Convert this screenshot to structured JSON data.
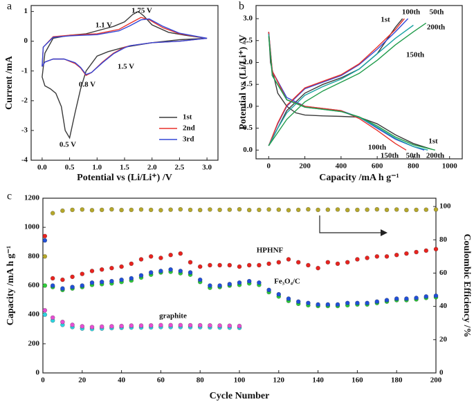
{
  "chart_data": [
    {
      "type": "line",
      "label": "a",
      "xlabel": "Potential vs (Li/Li⁺) /V",
      "ylabel": "Current /mA",
      "xlim": [
        -0.2,
        3.2
      ],
      "ylim": [
        -4,
        1.2
      ],
      "xticks": [
        {
          "value": 0,
          "label": "0.0"
        },
        {
          "value": 0.5,
          "label": "0.5"
        },
        {
          "value": 1,
          "label": "1.0"
        },
        {
          "value": 1.5,
          "label": "1.5"
        },
        {
          "value": 2,
          "label": "2.0"
        },
        {
          "value": 2.5,
          "label": "2.5"
        },
        {
          "value": 3,
          "label": "3.0"
        }
      ],
      "yticks": [
        -4,
        -3,
        -2,
        -1,
        0,
        1
      ],
      "legend": "lower right",
      "series": [
        {
          "name": "1st",
          "color": "#3a3a3a",
          "x": [
            3.0,
            2.5,
            2.0,
            1.5,
            1.2,
            1.0,
            0.8,
            0.7,
            0.6,
            0.5,
            0.42,
            0.35,
            0.25,
            0.15,
            0.05,
            0.0,
            0.05,
            0.2,
            0.5,
            0.8,
            1.1,
            1.3,
            1.5,
            1.65,
            1.75,
            1.85,
            2.0,
            2.3,
            2.6,
            3.0
          ],
          "values": [
            0.1,
            0.05,
            -0.05,
            -0.2,
            -0.35,
            -0.5,
            -1.0,
            -1.6,
            -2.4,
            -3.25,
            -3.0,
            -2.2,
            -1.75,
            -1.6,
            -1.5,
            -1.2,
            -0.4,
            0.1,
            0.2,
            0.25,
            0.4,
            0.5,
            0.65,
            0.9,
            1.0,
            0.85,
            0.55,
            0.3,
            0.2,
            0.1
          ]
        },
        {
          "name": "2nd",
          "color": "#e8312a",
          "x": [
            3.0,
            2.5,
            2.0,
            1.6,
            1.5,
            1.3,
            1.1,
            0.9,
            0.8,
            0.7,
            0.6,
            0.4,
            0.2,
            0.05,
            0.0,
            0.02,
            0.2,
            0.5,
            1.0,
            1.4,
            1.6,
            1.8,
            1.95,
            2.2,
            2.5,
            3.0
          ],
          "values": [
            0.1,
            0.0,
            -0.05,
            -0.15,
            -0.2,
            -0.4,
            -0.7,
            -1.05,
            -1.15,
            -0.9,
            -0.75,
            -0.6,
            -0.6,
            -0.7,
            -0.85,
            -0.2,
            0.15,
            0.2,
            0.25,
            0.4,
            0.6,
            0.8,
            0.72,
            0.45,
            0.25,
            0.1
          ]
        },
        {
          "name": "3rd",
          "color": "#3347d6",
          "x": [
            3.0,
            2.5,
            2.0,
            1.6,
            1.5,
            1.3,
            1.1,
            0.9,
            0.8,
            0.7,
            0.6,
            0.4,
            0.2,
            0.05,
            0.0,
            0.02,
            0.2,
            0.5,
            1.0,
            1.4,
            1.6,
            1.8,
            1.95,
            2.2,
            2.5,
            3.0
          ],
          "values": [
            0.1,
            0.0,
            -0.05,
            -0.15,
            -0.22,
            -0.42,
            -0.72,
            -1.05,
            -1.12,
            -0.88,
            -0.72,
            -0.6,
            -0.6,
            -0.7,
            -0.85,
            -0.2,
            0.13,
            0.18,
            0.22,
            0.35,
            0.52,
            0.72,
            0.75,
            0.5,
            0.27,
            0.1
          ]
        }
      ],
      "annotations": [
        "1.1 V",
        "1.75 V",
        "1.5 V",
        "0.8 V",
        "0.5 V"
      ]
    },
    {
      "type": "line",
      "label": "b",
      "xlabel": "Capacity /mA h g⁻¹",
      "ylabel": "Potential vs (Li/Li⁺) /V",
      "xlim": [
        -70,
        1070
      ],
      "ylim": [
        -0.2,
        3.3
      ],
      "xticks": [
        0,
        200,
        400,
        600,
        800,
        1000
      ],
      "yticks": [
        {
          "value": 0,
          "label": "0.0"
        },
        {
          "value": 0.5,
          "label": "0.5"
        },
        {
          "value": 1,
          "label": "1.0"
        },
        {
          "value": 1.5,
          "label": "1.5"
        },
        {
          "value": 2,
          "label": "2.0"
        },
        {
          "value": 2.5,
          "label": "2.5"
        },
        {
          "value": 3,
          "label": "3.0"
        }
      ],
      "series": [
        {
          "name": "1st",
          "color": "#3a3a3a",
          "x": [
            0,
            10,
            50,
            100,
            150,
            200,
            300,
            400,
            500,
            600,
            700,
            800,
            900,
            null,
            0,
            50,
            100,
            200,
            300,
            400,
            500,
            600,
            650,
            700,
            740
          ],
          "values": [
            2.7,
            2.0,
            1.3,
            1.0,
            0.85,
            0.8,
            0.78,
            0.77,
            0.75,
            0.6,
            0.35,
            0.15,
            0.02,
            null,
            0.1,
            0.5,
            0.9,
            1.3,
            1.5,
            1.65,
            1.85,
            2.2,
            2.5,
            2.8,
            3.0
          ]
        },
        {
          "name": "50th",
          "color": "#3347d6",
          "x": [
            0,
            20,
            100,
            200,
            300,
            400,
            500,
            600,
            700,
            800,
            860,
            null,
            0,
            50,
            100,
            200,
            300,
            400,
            500,
            600,
            700,
            770
          ],
          "values": [
            2.7,
            1.8,
            1.2,
            1.0,
            0.95,
            0.9,
            0.75,
            0.5,
            0.25,
            0.08,
            0.0,
            null,
            0.1,
            0.6,
            1.0,
            1.4,
            1.55,
            1.7,
            1.95,
            2.3,
            2.7,
            3.0
          ]
        },
        {
          "name": "100th",
          "color": "#e8312a",
          "x": [
            0,
            20,
            100,
            200,
            300,
            400,
            500,
            600,
            700,
            760,
            null,
            0,
            50,
            100,
            200,
            300,
            400,
            500,
            600,
            700,
            750
          ],
          "values": [
            2.7,
            1.8,
            1.15,
            1.0,
            0.95,
            0.9,
            0.72,
            0.45,
            0.15,
            0.0,
            null,
            0.1,
            0.62,
            1.02,
            1.42,
            1.57,
            1.72,
            1.97,
            2.35,
            2.75,
            3.0
          ]
        },
        {
          "name": "150th",
          "color": "#1aa3a3",
          "x": [
            0,
            20,
            100,
            200,
            300,
            400,
            500,
            600,
            700,
            800,
            880,
            null,
            0,
            50,
            100,
            200,
            300,
            400,
            500,
            600,
            700,
            800
          ],
          "values": [
            2.65,
            1.7,
            1.15,
            0.98,
            0.93,
            0.88,
            0.75,
            0.52,
            0.27,
            0.08,
            0.0,
            null,
            0.1,
            0.5,
            0.85,
            1.25,
            1.45,
            1.62,
            1.85,
            2.2,
            2.55,
            2.85
          ]
        },
        {
          "name": "200th",
          "color": "#1f9b4a",
          "x": [
            0,
            20,
            100,
            200,
            300,
            400,
            500,
            600,
            700,
            800,
            920,
            null,
            0,
            50,
            100,
            200,
            300,
            400,
            500,
            600,
            700,
            800,
            870
          ],
          "values": [
            2.6,
            1.7,
            1.15,
            0.98,
            0.93,
            0.88,
            0.76,
            0.55,
            0.3,
            0.12,
            0.0,
            null,
            0.1,
            0.4,
            0.7,
            1.1,
            1.35,
            1.55,
            1.75,
            2.05,
            2.4,
            2.7,
            2.9
          ]
        }
      ],
      "annotations": [
        "1st",
        "100th",
        "150th",
        "50th",
        "200th"
      ]
    },
    {
      "type": "scatter",
      "label": "c",
      "xlabel": "Cycle Number",
      "ylabel": "Capacity /mA h g⁻¹",
      "y2label": "Coulombic Efficiency /%",
      "xlim": [
        0,
        200
      ],
      "ylim": [
        0,
        1200
      ],
      "y2lim": [
        0,
        105
      ],
      "xticks": [
        0,
        20,
        40,
        60,
        80,
        100,
        120,
        140,
        160,
        180,
        200
      ],
      "yticks": [
        0,
        200,
        400,
        600,
        800,
        1000,
        1200
      ],
      "y2ticks": [
        0,
        20,
        40,
        60,
        80,
        100
      ],
      "series": [
        {
          "color": "#b5a72a",
          "axis": "y2",
          "x": [
            1,
            5,
            10,
            15,
            20,
            25,
            30,
            35,
            40,
            45,
            50,
            55,
            60,
            65,
            70,
            75,
            80,
            85,
            90,
            95,
            100,
            105,
            110,
            115,
            120,
            125,
            130,
            135,
            140,
            145,
            150,
            155,
            160,
            165,
            170,
            175,
            180,
            185,
            190,
            195,
            200
          ],
          "values": [
            70,
            96,
            97.5,
            98,
            98.2,
            97.8,
            98,
            98.3,
            97.9,
            98,
            98.2,
            98,
            97.8,
            98.1,
            98.3,
            98,
            97.9,
            98.2,
            98,
            98.1,
            98.3,
            97.9,
            98,
            98.2,
            98.1,
            97.8,
            98,
            98.3,
            98,
            98.1,
            98.2,
            97.9,
            98,
            98.1,
            98.3,
            98,
            98.2,
            97.9,
            98,
            98.1,
            98.2
          ]
        },
        {
          "name": "HPHNF",
          "color": "#e8231f",
          "x": [
            1,
            5,
            10,
            15,
            20,
            25,
            30,
            35,
            40,
            45,
            50,
            55,
            60,
            65,
            70,
            75,
            80,
            85,
            90,
            95,
            100,
            105,
            110,
            115,
            120,
            125,
            130,
            135,
            140,
            145,
            150,
            155,
            160,
            165,
            170,
            175,
            180,
            185,
            190,
            195,
            200
          ],
          "values": [
            940,
            650,
            640,
            660,
            680,
            700,
            710,
            720,
            730,
            750,
            780,
            800,
            790,
            810,
            820,
            760,
            730,
            740,
            740,
            740,
            730,
            740,
            740,
            750,
            760,
            780,
            760,
            740,
            720,
            760,
            750,
            760,
            780,
            790,
            800,
            800,
            810,
            820,
            830,
            840,
            850
          ]
        },
        {
          "color": "#2ecc3a",
          "x": [
            1,
            5,
            10,
            15,
            20,
            25,
            30,
            35,
            40,
            45,
            50,
            55,
            60,
            65,
            70,
            75,
            80,
            85,
            90,
            95,
            100,
            105,
            110,
            115,
            120,
            125,
            130,
            135,
            140,
            145,
            150,
            155,
            160,
            165,
            170,
            175,
            180,
            185,
            190,
            195,
            200
          ],
          "values": [
            600,
            590,
            570,
            580,
            590,
            605,
            610,
            615,
            625,
            635,
            655,
            675,
            690,
            695,
            685,
            675,
            625,
            585,
            590,
            600,
            605,
            615,
            605,
            555,
            525,
            495,
            475,
            465,
            460,
            460,
            460,
            465,
            470,
            470,
            480,
            490,
            500,
            500,
            505,
            515,
            520
          ]
        },
        {
          "name": "Fe₃O₄/C",
          "color": "#2150d8",
          "x": [
            1,
            5,
            10,
            15,
            20,
            25,
            30,
            35,
            40,
            45,
            50,
            55,
            60,
            65,
            70,
            75,
            80,
            85,
            90,
            95,
            100,
            105,
            110,
            115,
            120,
            125,
            130,
            135,
            140,
            145,
            150,
            155,
            160,
            165,
            170,
            175,
            180,
            185,
            190,
            195,
            200
          ],
          "values": [
            910,
            600,
            580,
            590,
            600,
            620,
            625,
            630,
            640,
            650,
            670,
            690,
            700,
            710,
            700,
            690,
            640,
            600,
            600,
            610,
            620,
            630,
            620,
            570,
            540,
            510,
            490,
            480,
            470,
            470,
            470,
            480,
            480,
            480,
            490,
            500,
            510,
            510,
            515,
            525,
            530
          ]
        },
        {
          "color": "#2fd3e0",
          "x": [
            1,
            5,
            10,
            15,
            20,
            25,
            30,
            35,
            40,
            45,
            50,
            55,
            60,
            65,
            70,
            75,
            80,
            85,
            90,
            95,
            100
          ],
          "values": [
            400,
            360,
            330,
            315,
            305,
            302,
            305,
            308,
            310,
            312,
            312,
            313,
            315,
            315,
            315,
            314,
            314,
            313,
            312,
            311,
            310
          ]
        },
        {
          "name": "graphite",
          "color": "#e64fd2",
          "x": [
            1,
            5,
            10,
            15,
            20,
            25,
            30,
            35,
            40,
            45,
            50,
            55,
            60,
            65,
            70,
            75,
            80,
            85,
            90,
            95,
            100
          ],
          "values": [
            430,
            380,
            350,
            330,
            320,
            315,
            318,
            320,
            322,
            325,
            325,
            326,
            328,
            328,
            328,
            327,
            327,
            326,
            325,
            324,
            322
          ]
        }
      ]
    }
  ]
}
